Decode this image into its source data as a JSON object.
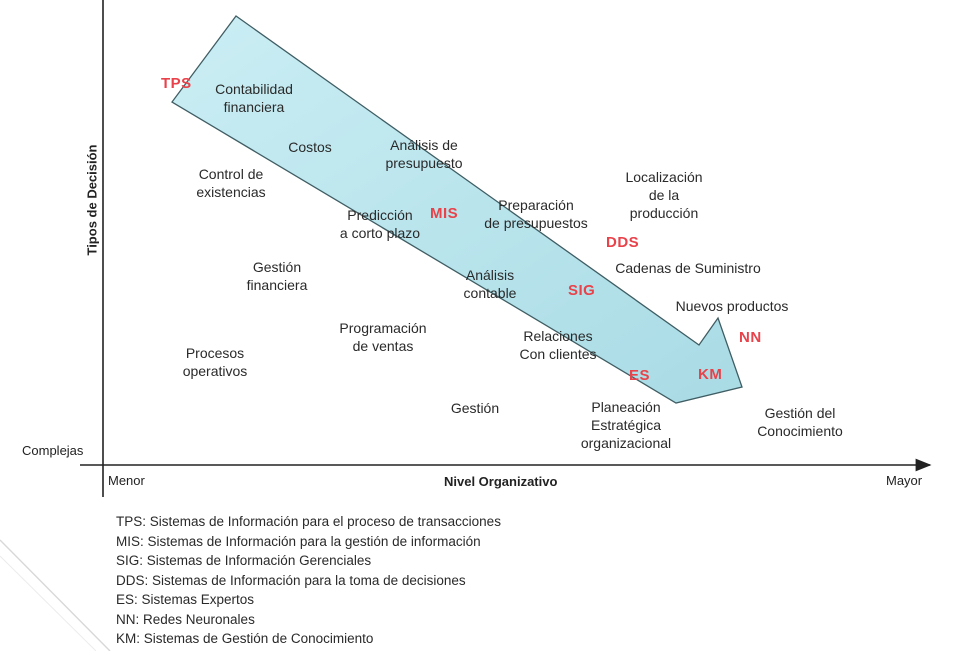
{
  "axes": {
    "y_title": "Tipos de Decisión",
    "y_low_label": "Complejas",
    "x_title": "Nivel Organizativo",
    "x_min_label": "Menor",
    "x_max_label": "Mayor"
  },
  "system_acronyms": {
    "tps": "TPS",
    "mis": "MIS",
    "sig": "SIG",
    "dds": "DDS",
    "es": "ES",
    "nn": "NN",
    "km": "KM"
  },
  "decision_labels": {
    "contabilidad": "Contabilidad\nfinanciera",
    "costos": "Costos",
    "analisis_presupuesto": "Análisis de\npresupuesto",
    "control_existencias": "Control de\nexistencias",
    "prediccion": "Predicción\na corto plazo",
    "preparacion": "Preparación\nde presupuestos",
    "localizacion": "Localización\nde la\nproducción",
    "gestion_financiera": "Gestión\nfinanciera",
    "analisis_contable": "Análisis\ncontable",
    "cadenas": "Cadenas de Suministro",
    "nuevos_productos": "Nuevos productos",
    "programacion": "Programación\nde ventas",
    "relaciones": "Relaciones\nCon clientes",
    "procesos": "Procesos\noperativos",
    "gestion": "Gestión",
    "planeacion": "Planeación\nEstratégica\norganizacional",
    "gestion_conocimiento": "Gestión del Conocimiento"
  },
  "legend": [
    "TPS: Sistemas de Información para el proceso de transacciones",
    "MIS: Sistemas de Información para la gestión de información",
    "SIG: Sistemas de Información Gerenciales",
    "DDS: Sistemas de Información para la toma de decisiones",
    "ES: Sistemas Expertos",
    "NN: Redes Neuronales",
    "KM: Sistemas de Gestión de Conocimiento"
  ],
  "colors": {
    "arrow_fill": "#b9e4ec",
    "arrow_stroke": "#3f5d63",
    "acronym": "#e8424a",
    "axis": "#222222"
  }
}
